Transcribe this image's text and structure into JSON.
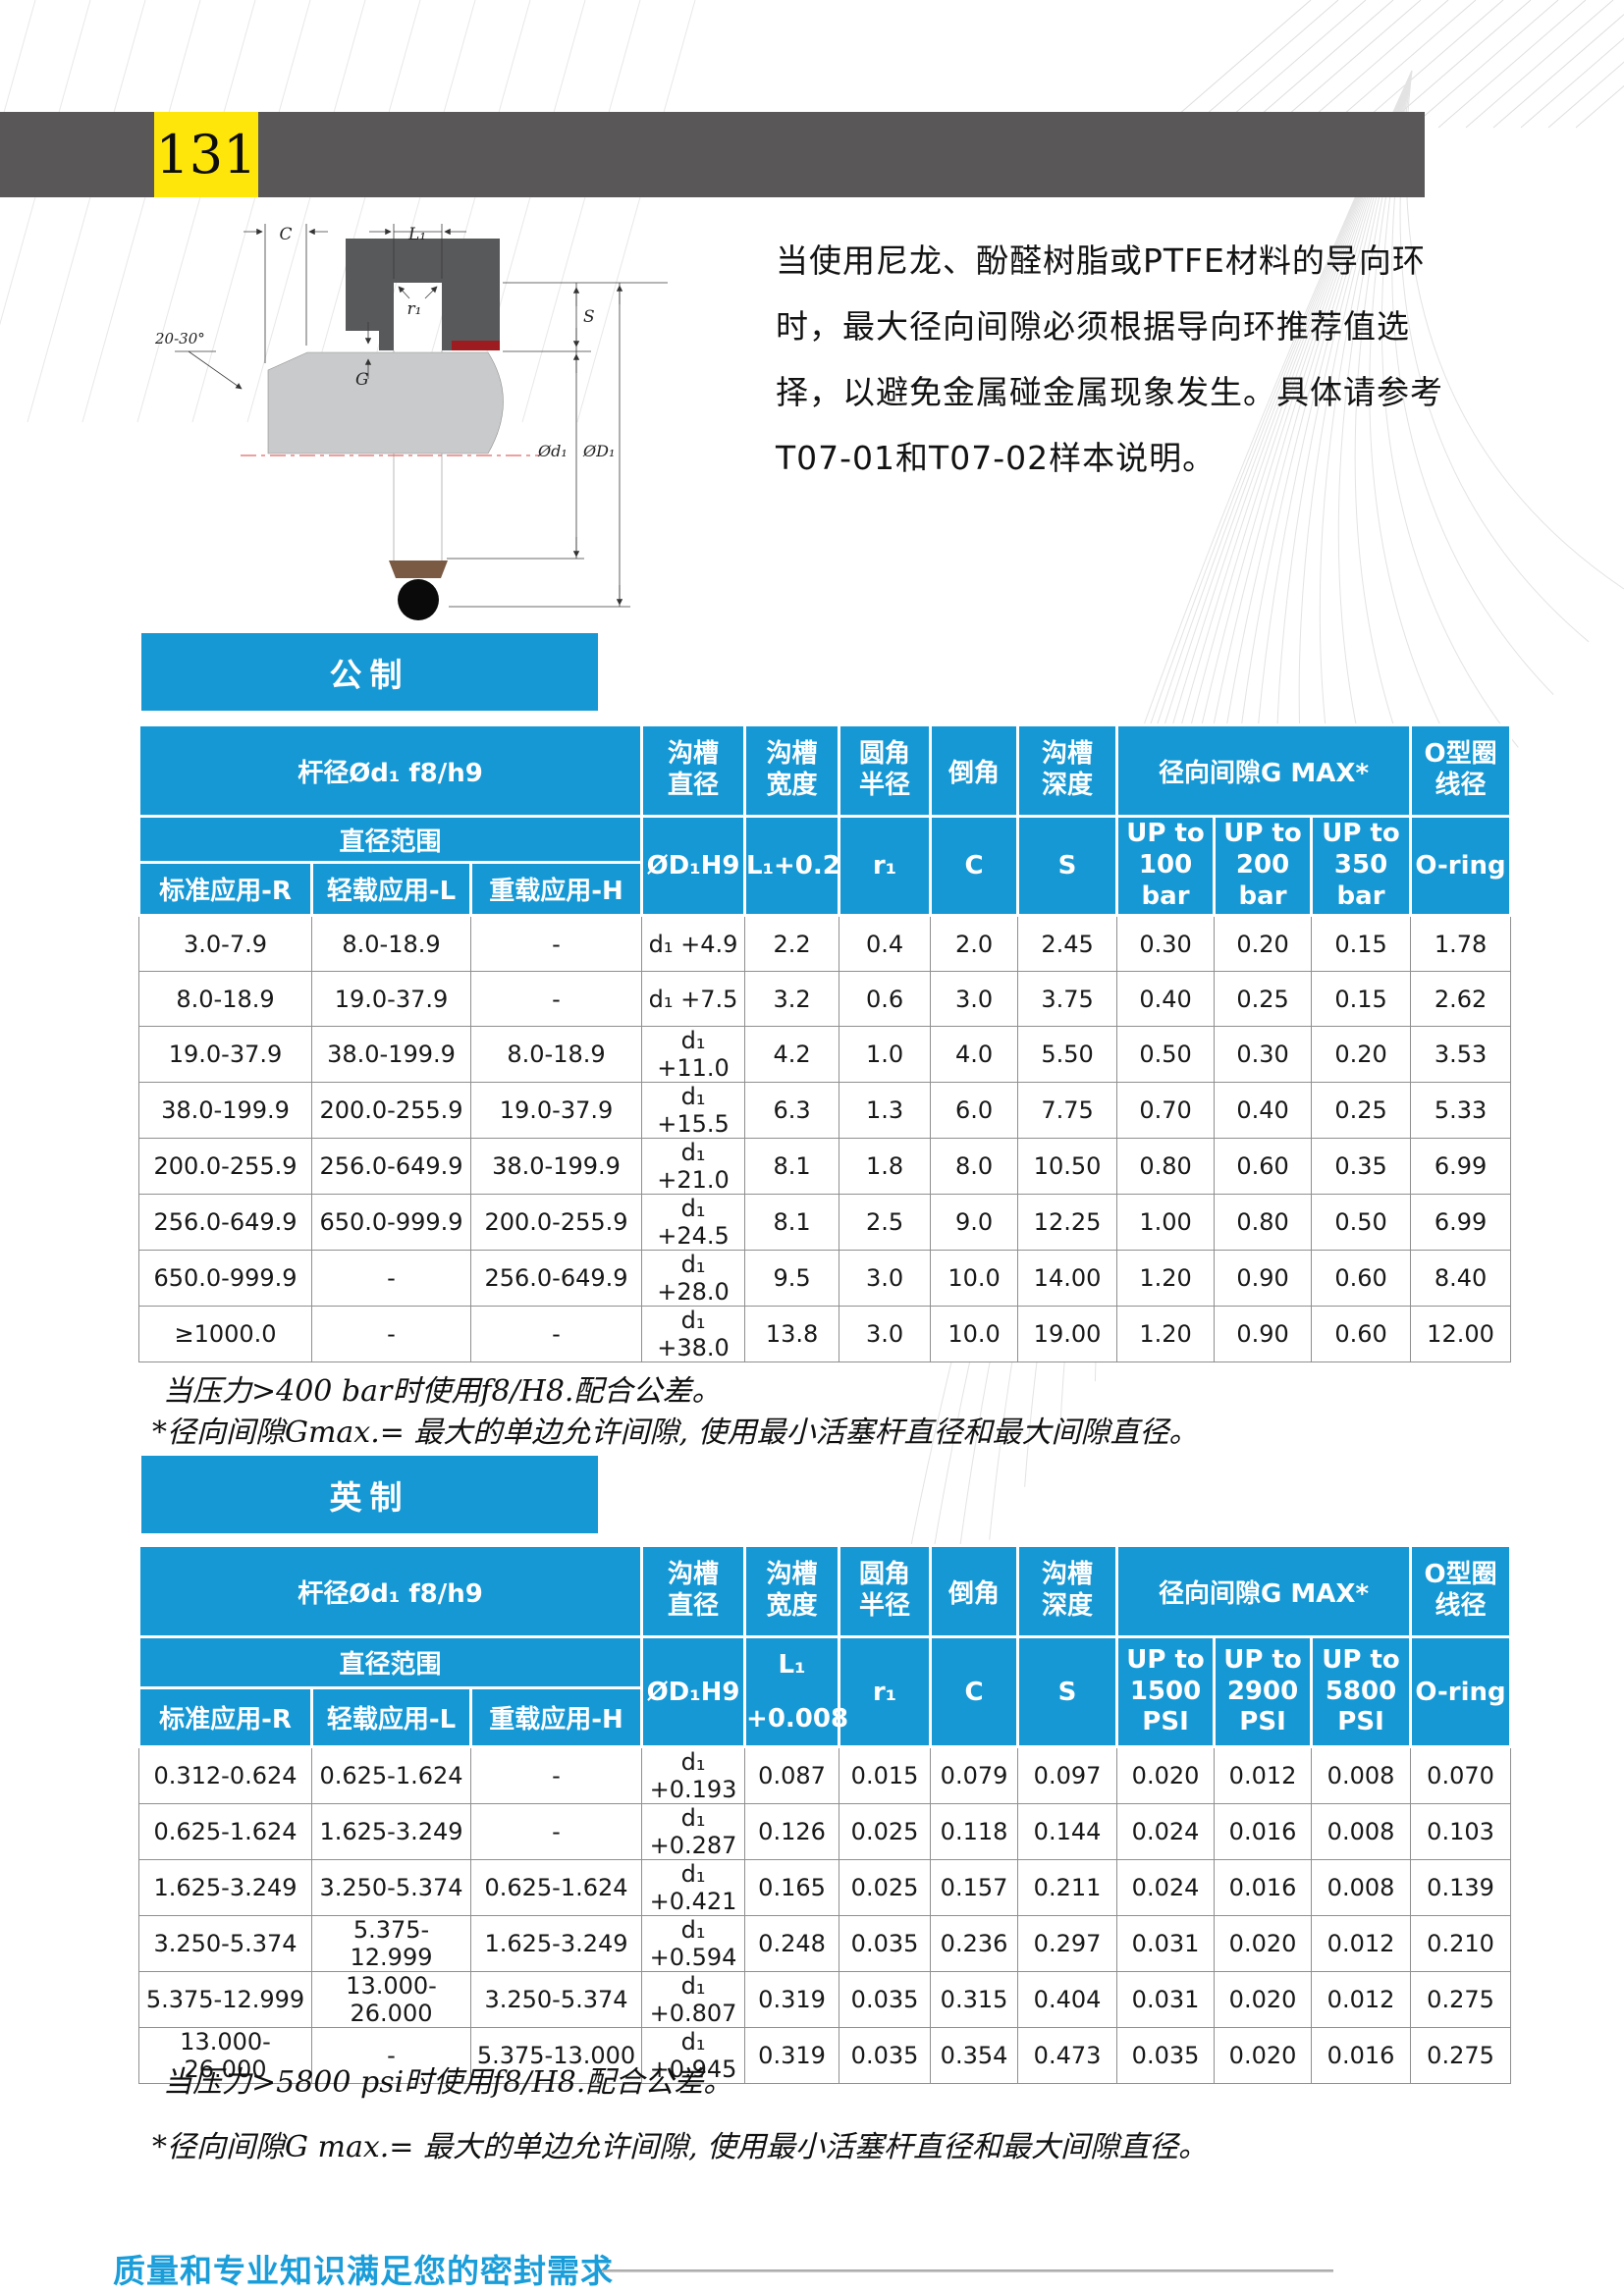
{
  "page": {
    "number": "131",
    "footer": "质量和专业知识满足您的密封需求"
  },
  "colors": {
    "accent_blue": "#1698d5",
    "header_bar_gray": "#595757",
    "page_number_yellow": "#ffe60a",
    "footer_blue": "#1a9dd9",
    "diagram_red": "#9e1b1f",
    "diagram_brown": "#7b5a44"
  },
  "intro": {
    "lines": [
      "当使用尼龙、酚醛树脂或PTFE材料的导向环",
      "时，最大径向间隙必须根据导向环推荐值选",
      "择，以避免金属碰金属现象发生。具体请参考",
      "T07-01和T07-02样本说明。"
    ]
  },
  "diagram": {
    "labels": {
      "c": "C",
      "l1": "L₁",
      "r1": "r₁",
      "s": "S",
      "g": "G",
      "angle": "20-30°",
      "d1": "Ød₁",
      "D1": "ØD₁"
    }
  },
  "metric": {
    "tab": "公制",
    "header": {
      "rod": "杆径Ød₁ f8/h9",
      "groove_dia": "沟槽\n直径",
      "groove_width": "沟槽\n宽度",
      "corner_radius": "圆角\n半径",
      "chamfer": "倒角",
      "groove_depth": "沟槽\n深度",
      "clearance": "径向间隙G MAX*",
      "oring": "O型圈\n线径",
      "range": "直径范围",
      "standard": "标准应用-R",
      "light": "轻载应用-L",
      "heavy": "重载应用-H",
      "dia_sym": "ØD₁H9",
      "width_sym": "L₁+0.2",
      "radius_sym": "r₁",
      "chamfer_sym": "C",
      "depth_sym": "S",
      "p1": "UP to\n100\nbar",
      "p2": "UP to\n200\nbar",
      "p3": "UP to\n350\nbar",
      "oring_sym": "O-ring"
    },
    "rows": [
      [
        "3.0-7.9",
        "8.0-18.9",
        "-",
        "d₁ +4.9",
        "2.2",
        "0.4",
        "2.0",
        "2.45",
        "0.30",
        "0.20",
        "0.15",
        "1.78"
      ],
      [
        "8.0-18.9",
        "19.0-37.9",
        "-",
        "d₁ +7.5",
        "3.2",
        "0.6",
        "3.0",
        "3.75",
        "0.40",
        "0.25",
        "0.15",
        "2.62"
      ],
      [
        "19.0-37.9",
        "38.0-199.9",
        "8.0-18.9",
        "d₁ +11.0",
        "4.2",
        "1.0",
        "4.0",
        "5.50",
        "0.50",
        "0.30",
        "0.20",
        "3.53"
      ],
      [
        "38.0-199.9",
        "200.0-255.9",
        "19.0-37.9",
        "d₁ +15.5",
        "6.3",
        "1.3",
        "6.0",
        "7.75",
        "0.70",
        "0.40",
        "0.25",
        "5.33"
      ],
      [
        "200.0-255.9",
        "256.0-649.9",
        "38.0-199.9",
        "d₁ +21.0",
        "8.1",
        "1.8",
        "8.0",
        "10.50",
        "0.80",
        "0.60",
        "0.35",
        "6.99"
      ],
      [
        "256.0-649.9",
        "650.0-999.9",
        "200.0-255.9",
        "d₁ +24.5",
        "8.1",
        "2.5",
        "9.0",
        "12.25",
        "1.00",
        "0.80",
        "0.50",
        "6.99"
      ],
      [
        "650.0-999.9",
        "-",
        "256.0-649.9",
        "d₁ +28.0",
        "9.5",
        "3.0",
        "10.0",
        "14.00",
        "1.20",
        "0.90",
        "0.60",
        "8.40"
      ],
      [
        "≥1000.0",
        "-",
        "-",
        "d₁ +38.0",
        "13.8",
        "3.0",
        "10.0",
        "19.00",
        "1.20",
        "0.90",
        "0.60",
        "12.00"
      ]
    ],
    "notes": [
      "当压力>400 bar时使用f8/H8.配合公差。",
      "*径向间隙Gmax.= 最大的单边允许间隙, 使用最小活塞杆直径和最大间隙直径。"
    ]
  },
  "imperial": {
    "tab": "英制",
    "header": {
      "rod": "杆径Ød₁ f8/h9",
      "groove_dia": "沟槽\n直径",
      "groove_width": "沟槽\n宽度",
      "corner_radius": "圆角\n半径",
      "chamfer": "倒角",
      "groove_depth": "沟槽\n深度",
      "clearance": "径向间隙G MAX*",
      "oring": "O型圈\n线径",
      "range": "直径范围",
      "standard": "标准应用-R",
      "light": "轻载应用-L",
      "heavy": "重载应用-H",
      "dia_sym": "ØD₁H9",
      "width_sym": "L₁\n+0.008",
      "radius_sym": "r₁",
      "chamfer_sym": "C",
      "depth_sym": "S",
      "p1": "UP to\n1500\nPSI",
      "p2": "UP to\n2900\nPSI",
      "p3": "UP to\n5800\nPSI",
      "oring_sym": "O-ring"
    },
    "rows": [
      [
        "0.312-0.624",
        "0.625-1.624",
        "-",
        "d₁ +0.193",
        "0.087",
        "0.015",
        "0.079",
        "0.097",
        "0.020",
        "0.012",
        "0.008",
        "0.070"
      ],
      [
        "0.625-1.624",
        "1.625-3.249",
        "-",
        "d₁ +0.287",
        "0.126",
        "0.025",
        "0.118",
        "0.144",
        "0.024",
        "0.016",
        "0.008",
        "0.103"
      ],
      [
        "1.625-3.249",
        "3.250-5.374",
        "0.625-1.624",
        "d₁ +0.421",
        "0.165",
        "0.025",
        "0.157",
        "0.211",
        "0.024",
        "0.016",
        "0.008",
        "0.139"
      ],
      [
        "3.250-5.374",
        "5.375-12.999",
        "1.625-3.249",
        "d₁ +0.594",
        "0.248",
        "0.035",
        "0.236",
        "0.297",
        "0.031",
        "0.020",
        "0.012",
        "0.210"
      ],
      [
        "5.375-12.999",
        "13.000-26.000",
        "3.250-5.374",
        "d₁ +0.807",
        "0.319",
        "0.035",
        "0.315",
        "0.404",
        "0.031",
        "0.020",
        "0.012",
        "0.275"
      ],
      [
        "13.000-26.000",
        "-",
        "5.375-13.000",
        "d₁ +0.945",
        "0.319",
        "0.035",
        "0.354",
        "0.473",
        "0.035",
        "0.020",
        "0.016",
        "0.275"
      ]
    ],
    "notes": [
      "当压力>5800 psi时使用f8/H8.配合公差。",
      "*径向间隙G max.= 最大的单边允许间隙, 使用最小活塞杆直径和最大间隙直径。"
    ]
  }
}
